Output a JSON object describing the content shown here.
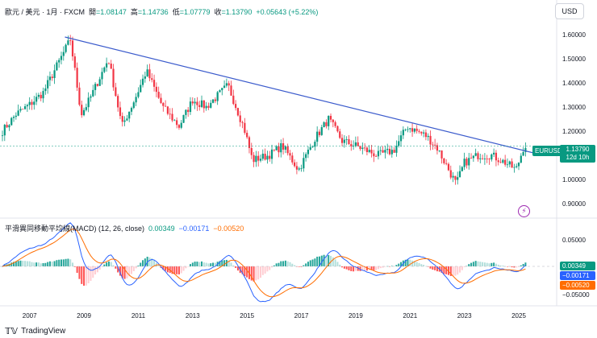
{
  "header": {
    "symbol": "歐元 / 美元 · 1月 · FXCM",
    "open_label": "開",
    "open": "=1.08147",
    "high_label": "高",
    "high": "=1.14736",
    "low_label": "低",
    "low": "=1.07779",
    "close_label": "收",
    "close": "=1.13790",
    "change": "+0.05643 (+5.22%)"
  },
  "currency_button": "USD",
  "price_axis_labels": [
    "1.60000",
    "1.50000",
    "1.40000",
    "1.30000",
    "1.20000",
    "1.00000",
    "0.90000"
  ],
  "symbol_tag": "EURUSD",
  "last_price": "1.13790",
  "countdown": "12d 10h",
  "macd": {
    "title": "平滑異同移動平均線(MACD) (12, 26, close)",
    "hist_value": "0.00349",
    "macd_value": "−0.00171",
    "signal_value": "−0.00520",
    "axis_labels": [
      "0.05000",
      "−0.05000"
    ]
  },
  "time_axis_labels": [
    "2007",
    "2009",
    "2011",
    "2013",
    "2015",
    "2017",
    "2019",
    "2021",
    "2023",
    "2025"
  ],
  "brand": "TradingView",
  "colors": {
    "up": "#089981",
    "down": "#f23645",
    "trend": "#2962ff",
    "macd": "#2962ff",
    "signal": "#ff6d00"
  },
  "chart_data": {
    "type": "candlestick",
    "title": "歐元 / 美元 · 1月 · FXCM",
    "price_range": [
      0.86,
      1.66
    ],
    "monthly_close_anchors": [
      [
        2006.0,
        1.2
      ],
      [
        2006.5,
        1.27
      ],
      [
        2007.0,
        1.31
      ],
      [
        2007.5,
        1.36
      ],
      [
        2008.0,
        1.47
      ],
      [
        2008.5,
        1.58
      ],
      [
        2008.9,
        1.27
      ],
      [
        2009.2,
        1.33
      ],
      [
        2009.9,
        1.5
      ],
      [
        2010.4,
        1.22
      ],
      [
        2010.9,
        1.34
      ],
      [
        2011.3,
        1.45
      ],
      [
        2011.9,
        1.3
      ],
      [
        2012.5,
        1.22
      ],
      [
        2013.0,
        1.33
      ],
      [
        2013.5,
        1.3
      ],
      [
        2014.3,
        1.39
      ],
      [
        2014.9,
        1.21
      ],
      [
        2015.2,
        1.08
      ],
      [
        2015.8,
        1.1
      ],
      [
        2016.3,
        1.14
      ],
      [
        2016.9,
        1.04
      ],
      [
        2017.5,
        1.17
      ],
      [
        2018.0,
        1.25
      ],
      [
        2018.5,
        1.16
      ],
      [
        2019.0,
        1.14
      ],
      [
        2019.8,
        1.1
      ],
      [
        2020.4,
        1.12
      ],
      [
        2020.9,
        1.22
      ],
      [
        2021.6,
        1.18
      ],
      [
        2022.0,
        1.13
      ],
      [
        2022.7,
        0.98
      ],
      [
        2023.0,
        1.07
      ],
      [
        2023.5,
        1.1
      ],
      [
        2024.0,
        1.1
      ],
      [
        2024.5,
        1.07
      ],
      [
        2024.9,
        1.04
      ],
      [
        2025.2,
        1.14
      ]
    ],
    "trendline": [
      [
        2008.3,
        1.59
      ],
      [
        2025.9,
        1.1
      ]
    ],
    "macd_params": [
      12,
      26,
      "close"
    ]
  }
}
